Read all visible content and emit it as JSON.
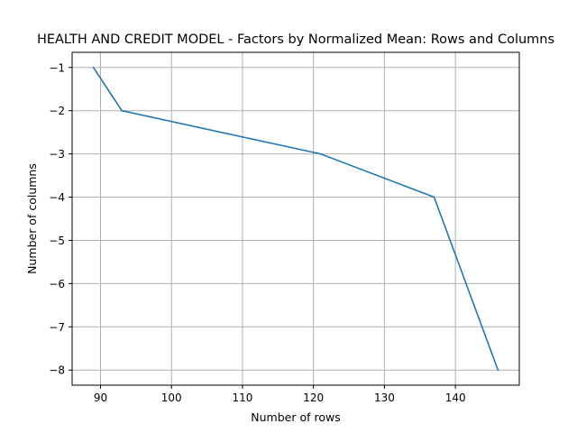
{
  "chart_data": {
    "type": "line",
    "title": "HEALTH AND CREDIT MODEL - Factors by Normalized Mean: Rows and Columns",
    "xlabel": "Number of rows",
    "ylabel": "Number of columns",
    "xlim": [
      86,
      149
    ],
    "ylim": [
      -8.35,
      -0.65
    ],
    "xticks": [
      90,
      100,
      110,
      120,
      130,
      140
    ],
    "yticks": [
      -1,
      -2,
      -3,
      -4,
      -5,
      -6,
      -7,
      -8
    ],
    "grid": true,
    "series": [
      {
        "color": "#1f77b4",
        "x": [
          89,
          93,
          121,
          137,
          146
        ],
        "y": [
          -1,
          -2,
          -3,
          -4,
          -8
        ]
      }
    ]
  }
}
